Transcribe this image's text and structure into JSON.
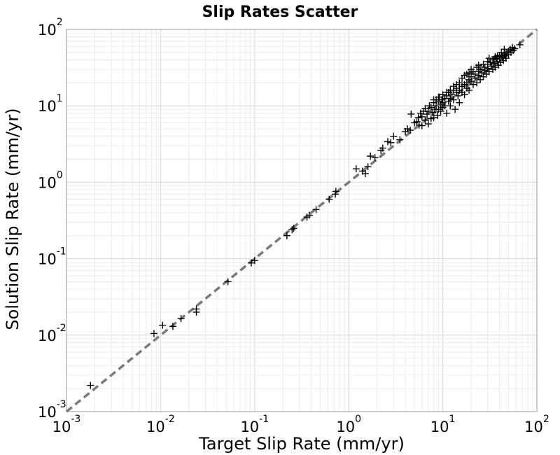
{
  "chart_data": {
    "type": "scatter",
    "title": "Slip Rates Scatter",
    "xlabel": "Target Slip Rate (mm/yr)",
    "ylabel": "Solution Slip Rate (mm/yr)",
    "xscale": "log",
    "yscale": "log",
    "xlim": [
      0.001,
      100
    ],
    "ylim": [
      0.001,
      100
    ],
    "grid": true,
    "marker": "plus",
    "marker_color": "#000000",
    "reference_line": {
      "style": "dashed",
      "color": "#7a7a7a",
      "relation": "y = x"
    },
    "x_ticks": [
      {
        "base": "10",
        "exp": "-3"
      },
      {
        "base": "10",
        "exp": "-2"
      },
      {
        "base": "10",
        "exp": "-1"
      },
      {
        "base": "10",
        "exp": "0"
      },
      {
        "base": "10",
        "exp": "1"
      },
      {
        "base": "10",
        "exp": "2"
      }
    ],
    "y_ticks": [
      {
        "base": "10",
        "exp": "-3"
      },
      {
        "base": "10",
        "exp": "-2"
      },
      {
        "base": "10",
        "exp": "-1"
      },
      {
        "base": "10",
        "exp": "0"
      },
      {
        "base": "10",
        "exp": "1"
      },
      {
        "base": "10",
        "exp": "2"
      }
    ],
    "points": [
      [
        0.0018,
        0.0022
      ],
      [
        0.0085,
        0.0105
      ],
      [
        0.0105,
        0.0135
      ],
      [
        0.0135,
        0.013
      ],
      [
        0.0165,
        0.0165
      ],
      [
        0.024,
        0.02
      ],
      [
        0.024,
        0.022
      ],
      [
        0.052,
        0.05
      ],
      [
        0.092,
        0.088
      ],
      [
        0.1,
        0.095
      ],
      [
        0.22,
        0.2
      ],
      [
        0.25,
        0.24
      ],
      [
        0.26,
        0.25
      ],
      [
        0.36,
        0.35
      ],
      [
        0.38,
        0.37
      ],
      [
        0.45,
        0.44
      ],
      [
        0.62,
        0.6
      ],
      [
        0.72,
        0.7
      ],
      [
        0.73,
        0.76
      ],
      [
        1.2,
        1.5
      ],
      [
        1.4,
        1.4
      ],
      [
        1.5,
        1.3
      ],
      [
        1.6,
        1.6
      ],
      [
        1.7,
        2.2
      ],
      [
        1.9,
        2.1
      ],
      [
        2.2,
        2.6
      ],
      [
        2.3,
        2.8
      ],
      [
        2.6,
        3.4
      ],
      [
        2.8,
        3.3
      ],
      [
        3.0,
        4.0
      ],
      [
        3.5,
        3.6
      ],
      [
        4.0,
        4.6
      ],
      [
        4.2,
        5.0
      ],
      [
        4.5,
        4.8
      ],
      [
        4.6,
        7.8
      ],
      [
        5.0,
        6.0
      ],
      [
        5.3,
        6.2
      ],
      [
        5.5,
        7.0
      ],
      [
        5.6,
        5.6
      ],
      [
        5.8,
        8.0
      ],
      [
        6.0,
        5.5
      ],
      [
        6.0,
        7.2
      ],
      [
        6.2,
        8.5
      ],
      [
        6.5,
        6.5
      ],
      [
        6.5,
        9.2
      ],
      [
        6.8,
        7.8
      ],
      [
        7.0,
        8.5
      ],
      [
        7.0,
        5.8
      ],
      [
        7.2,
        10.0
      ],
      [
        7.5,
        6.8
      ],
      [
        7.5,
        9.5
      ],
      [
        7.8,
        8.2
      ],
      [
        8.0,
        11.0
      ],
      [
        8.0,
        7.0
      ],
      [
        8.2,
        9.0
      ],
      [
        8.5,
        12.0
      ],
      [
        8.5,
        10.0
      ],
      [
        8.8,
        7.5
      ],
      [
        9.0,
        11.5
      ],
      [
        9.0,
        9.0
      ],
      [
        9.2,
        13.0
      ],
      [
        9.5,
        10.5
      ],
      [
        9.5,
        8.5
      ],
      [
        9.8,
        12.0
      ],
      [
        10.0,
        9.5
      ],
      [
        10.0,
        14.0
      ],
      [
        10.0,
        11.0
      ],
      [
        10.5,
        12.5
      ],
      [
        10.5,
        10.0
      ],
      [
        11.0,
        13.5
      ],
      [
        11.0,
        8.0
      ],
      [
        11.5,
        15.0
      ],
      [
        11.5,
        11.5
      ],
      [
        12.0,
        12.5
      ],
      [
        12.0,
        10.0
      ],
      [
        12.5,
        14.0
      ],
      [
        13.0,
        16.0
      ],
      [
        13.0,
        12.0
      ],
      [
        13.5,
        9.0
      ],
      [
        14.0,
        15.0
      ],
      [
        14.0,
        17.0
      ],
      [
        14.5,
        13.5
      ],
      [
        15.0,
        16.0
      ],
      [
        15.0,
        11.0
      ],
      [
        16.0,
        18.0
      ],
      [
        16.0,
        15.0
      ],
      [
        17.0,
        19.0
      ],
      [
        17.0,
        14.0
      ],
      [
        18.0,
        20.0
      ],
      [
        18.0,
        17.0
      ],
      [
        19.0,
        16.0
      ],
      [
        19.0,
        22.0
      ],
      [
        20.0,
        24.0
      ],
      [
        20.0,
        21.0
      ],
      [
        21.0,
        19.0
      ],
      [
        22.0,
        26.0
      ],
      [
        22.0,
        23.0
      ],
      [
        23.0,
        20.0
      ],
      [
        24.0,
        28.0
      ],
      [
        24.0,
        25.0
      ],
      [
        25.0,
        22.0
      ],
      [
        26.0,
        30.0
      ],
      [
        26.0,
        27.0
      ],
      [
        27.0,
        24.0
      ],
      [
        28.0,
        32.0
      ],
      [
        28.0,
        29.0
      ],
      [
        29.0,
        26.0
      ],
      [
        30.0,
        35.0
      ],
      [
        30.0,
        31.0
      ],
      [
        31.0,
        28.0
      ],
      [
        32.0,
        37.0
      ],
      [
        33.0,
        33.0
      ],
      [
        34.0,
        30.0
      ],
      [
        35.0,
        40.0
      ],
      [
        35.0,
        36.0
      ],
      [
        36.0,
        32.0
      ],
      [
        37.0,
        42.0
      ],
      [
        38.0,
        38.0
      ],
      [
        39.0,
        34.0
      ],
      [
        40.0,
        44.0
      ],
      [
        40.0,
        41.0
      ],
      [
        41.0,
        37.0
      ],
      [
        42.0,
        46.0
      ],
      [
        43.0,
        43.0
      ],
      [
        44.0,
        39.0
      ],
      [
        45.0,
        48.0
      ],
      [
        46.0,
        45.0
      ],
      [
        47.0,
        42.0
      ],
      [
        48.0,
        50.0
      ],
      [
        50.0,
        52.0
      ],
      [
        50.0,
        47.0
      ],
      [
        52.0,
        55.0
      ],
      [
        53.0,
        50.0
      ],
      [
        55.0,
        58.0
      ],
      [
        56.0,
        53.0
      ],
      [
        58.0,
        56.0
      ],
      [
        66.0,
        63.0
      ],
      [
        24.0,
        34.0
      ],
      [
        18.0,
        26.0
      ],
      [
        15.0,
        20.0
      ],
      [
        13.0,
        18.0
      ],
      [
        11.0,
        15.0
      ],
      [
        16.0,
        23.0
      ],
      [
        20.0,
        30.0
      ],
      [
        9.0,
        13.0
      ],
      [
        21.0,
        28.0
      ],
      [
        25.0,
        30.0
      ],
      [
        12.0,
        16.0
      ],
      [
        14.0,
        19.0
      ],
      [
        30.0,
        38.0
      ],
      [
        34.0,
        40.0
      ],
      [
        38.0,
        45.0
      ],
      [
        42.0,
        50.0
      ],
      [
        45.0,
        55.0
      ],
      [
        8.0,
        12.0
      ],
      [
        17.0,
        25.0
      ],
      [
        19.0,
        27.0
      ],
      [
        23.0,
        32.0
      ],
      [
        27.0,
        35.0
      ],
      [
        31.0,
        42.0
      ],
      [
        36.0,
        44.0
      ]
    ]
  }
}
